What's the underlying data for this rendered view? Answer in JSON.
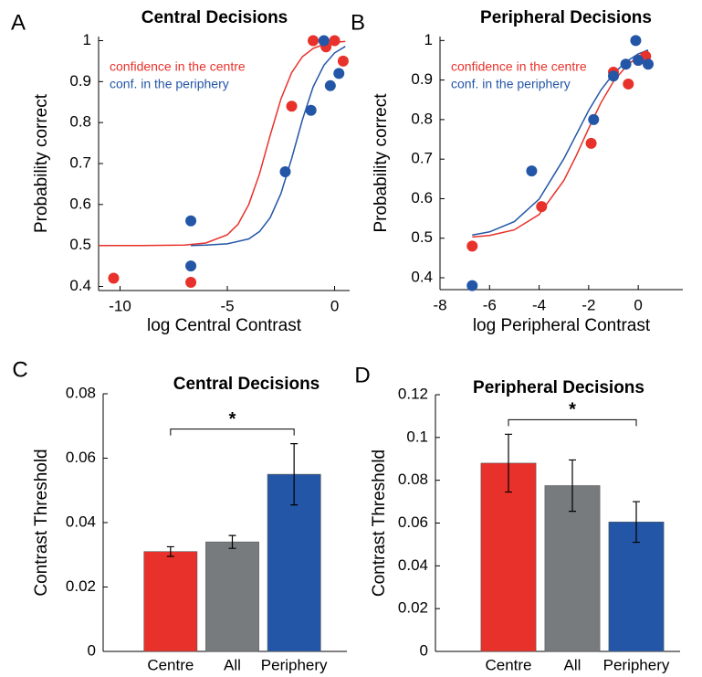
{
  "chart_data": [
    {
      "type": "scatter",
      "panel_label": "A",
      "title": "Central Decisions",
      "xlabel": "log Central Contrast",
      "ylabel": "Probability correct",
      "xlim": [
        -11,
        0.7
      ],
      "xticks": [
        -10,
        -5,
        0
      ],
      "ylim": [
        0.39,
        1.01
      ],
      "yticks": [
        0.4,
        0.5,
        0.6,
        0.7,
        0.8,
        0.9,
        1
      ],
      "legend_position": "upper left",
      "series": [
        {
          "name": "confidence in the centre",
          "color": "#e8312a",
          "x": [
            -10.3,
            -6.7,
            -2.0,
            -1.0,
            -0.4,
            0.0,
            0.4
          ],
          "values": [
            0.42,
            0.41,
            0.84,
            1.0,
            0.985,
            1.0,
            0.95
          ],
          "fit_x": [
            -11,
            -9,
            -7,
            -6,
            -5,
            -4.5,
            -4,
            -3.5,
            -3,
            -2.5,
            -2,
            -1.5,
            -1,
            -0.5,
            0,
            0.5
          ],
          "fit_values": [
            0.5,
            0.5,
            0.501,
            0.506,
            0.526,
            0.552,
            0.6,
            0.675,
            0.769,
            0.858,
            0.922,
            0.961,
            0.981,
            0.991,
            0.996,
            0.998
          ]
        },
        {
          "name": "conf. in the periphery",
          "color": "#2356a6",
          "x": [
            -6.7,
            -6.7,
            -2.3,
            -1.1,
            -0.5,
            -0.2,
            0.2
          ],
          "values": [
            0.56,
            0.45,
            0.68,
            0.83,
            1.0,
            0.89,
            0.92
          ],
          "fit_x": [
            -6.7,
            -6,
            -5,
            -4,
            -3.5,
            -3,
            -2.5,
            -2,
            -1.5,
            -1,
            -0.5,
            0,
            0.5
          ],
          "fit_values": [
            0.5,
            0.501,
            0.504,
            0.516,
            0.534,
            0.568,
            0.627,
            0.712,
            0.807,
            0.887,
            0.94,
            0.97,
            0.986
          ]
        }
      ]
    },
    {
      "type": "scatter",
      "panel_label": "B",
      "title": "Peripheral Decisions",
      "xlabel": "log Peripheral Contrast",
      "ylabel": "Probability correct",
      "xlim": [
        -8,
        1.8
      ],
      "xticks": [
        -8,
        -6,
        -4,
        -2,
        0
      ],
      "ylim": [
        0.37,
        1.01
      ],
      "yticks": [
        0.4,
        0.5,
        0.6,
        0.7,
        0.8,
        0.9,
        1
      ],
      "legend_position": "upper left",
      "series": [
        {
          "name": "confidence in the centre",
          "color": "#e8312a",
          "x": [
            -6.7,
            -3.9,
            -1.9,
            -1.0,
            -0.4,
            0.0,
            0.3
          ],
          "values": [
            0.48,
            0.58,
            0.74,
            0.92,
            0.89,
            0.95,
            0.96
          ],
          "fit_x": [
            -6.7,
            -6,
            -5,
            -4,
            -3,
            -2.5,
            -2,
            -1.5,
            -1,
            -0.5,
            0,
            0.4
          ],
          "fit_values": [
            0.503,
            0.507,
            0.521,
            0.56,
            0.646,
            0.709,
            0.778,
            0.843,
            0.896,
            0.934,
            0.96,
            0.974
          ]
        },
        {
          "name": "conf. in the periphery",
          "color": "#2356a6",
          "x": [
            -6.7,
            -4.3,
            -1.8,
            -1.0,
            -0.5,
            -0.1,
            0.0,
            0.4
          ],
          "values": [
            0.38,
            0.67,
            0.8,
            0.91,
            0.94,
            1.0,
            0.95,
            0.94
          ],
          "fit_x": [
            -6.7,
            -6,
            -5,
            -4,
            -3,
            -2.5,
            -2,
            -1.5,
            -1,
            -0.5,
            0,
            0.4
          ],
          "fit_values": [
            0.508,
            0.516,
            0.542,
            0.599,
            0.701,
            0.762,
            0.823,
            0.875,
            0.916,
            0.946,
            0.966,
            0.976
          ]
        }
      ]
    },
    {
      "type": "bar",
      "panel_label": "C",
      "title": "Central Decisions",
      "ylabel": "Contrast Threshold",
      "categories": [
        "Centre",
        "All",
        "Periphery"
      ],
      "values": [
        0.031,
        0.034,
        0.055
      ],
      "errors": [
        0.0015,
        0.002,
        0.0095
      ],
      "colors": [
        "#e8312a",
        "#777b7e",
        "#2356a6"
      ],
      "ylim": [
        0,
        0.08
      ],
      "yticks": [
        0,
        0.02,
        0.04,
        0.06,
        0.08
      ],
      "significance": {
        "label": "*",
        "between": [
          "Centre",
          "Periphery"
        ]
      }
    },
    {
      "type": "bar",
      "panel_label": "D",
      "title": "Peripheral Decisions",
      "ylabel": "Contrast Threshold",
      "categories": [
        "Centre",
        "All",
        "Periphery"
      ],
      "values": [
        0.088,
        0.0775,
        0.0605
      ],
      "errors": [
        0.0135,
        0.012,
        0.0095
      ],
      "colors": [
        "#e8312a",
        "#777b7e",
        "#2356a6"
      ],
      "ylim": [
        0,
        0.12
      ],
      "yticks": [
        0,
        0.02,
        0.04,
        0.06,
        0.08,
        0.1,
        0.12
      ],
      "significance": {
        "label": "*",
        "between": [
          "Centre",
          "Periphery"
        ]
      }
    }
  ]
}
